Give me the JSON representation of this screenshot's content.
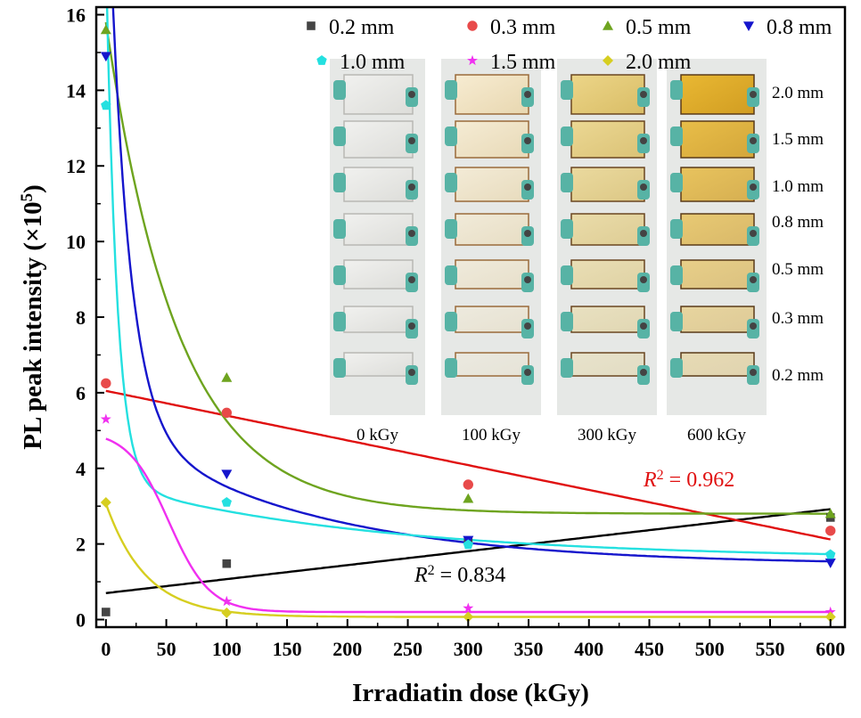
{
  "chart_data": {
    "type": "scatter",
    "title": "",
    "xlabel": "Irradiatin dose (kGy)",
    "ylabel_main": "PL peak intensity (×10",
    "ylabel_exp": "5",
    "ylabel_close": ")",
    "xlim": [
      -8,
      612
    ],
    "ylim": [
      -0.2,
      16.2
    ],
    "xticks": [
      0,
      50,
      100,
      150,
      200,
      250,
      300,
      350,
      400,
      450,
      500,
      550,
      600
    ],
    "yticks": [
      0,
      2,
      4,
      6,
      8,
      10,
      12,
      14,
      16
    ],
    "grid": false,
    "legend_position": "top-right",
    "series": [
      {
        "name": "0.2 mm",
        "marker": "square",
        "color": "#444444",
        "x": [
          0,
          100,
          300,
          600
        ],
        "y": [
          0.2,
          1.48,
          2.08,
          2.7
        ]
      },
      {
        "name": "0.3 mm",
        "marker": "circle",
        "color": "#e84a4a",
        "x": [
          0,
          100,
          300,
          600
        ],
        "y": [
          6.25,
          5.47,
          3.57,
          2.35
        ]
      },
      {
        "name": "0.5 mm",
        "marker": "triangle-up",
        "color": "#6ea41f",
        "x": [
          0,
          100,
          300,
          600
        ],
        "y": [
          15.6,
          6.4,
          3.2,
          2.8
        ]
      },
      {
        "name": "0.8 mm",
        "marker": "triangle-down",
        "color": "#1515cc",
        "x": [
          0,
          100,
          300,
          600
        ],
        "y": [
          14.9,
          3.85,
          2.1,
          1.5
        ]
      },
      {
        "name": "1.0 mm",
        "marker": "pentagon",
        "color": "#24e0e0",
        "x": [
          0,
          100,
          300,
          600
        ],
        "y": [
          13.6,
          3.1,
          1.98,
          1.72
        ]
      },
      {
        "name": "1.5 mm",
        "marker": "star",
        "color": "#f030f0",
        "x": [
          0,
          100,
          300,
          600
        ],
        "y": [
          5.3,
          0.48,
          0.3,
          0.2
        ]
      },
      {
        "name": "2.0 mm",
        "marker": "diamond",
        "color": "#d6ce20",
        "x": [
          0,
          100,
          300,
          600
        ],
        "y": [
          3.1,
          0.18,
          0.07,
          0.07
        ]
      }
    ],
    "fits": [
      {
        "series": "0.2 mm",
        "kind": "linear",
        "color": "#000000",
        "y0": 0.7,
        "slope": 0.0037
      },
      {
        "series": "0.3 mm",
        "kind": "linear",
        "color": "#e01010",
        "y0": 6.05,
        "slope": -0.00655
      },
      {
        "series": "0.5 mm",
        "kind": "exp",
        "color": "#6ea41f",
        "a": 2.8,
        "b": 13.0,
        "tau": 60
      },
      {
        "series": "0.8 mm",
        "kind": "exp2",
        "color": "#1515cc",
        "a": 1.45,
        "b1": 16.0,
        "t1": 16,
        "b2": 3.8,
        "t2": 160
      },
      {
        "series": "1.0 mm",
        "kind": "exp2",
        "color": "#24e0e0",
        "a": 1.6,
        "b1": 14.0,
        "t1": 9,
        "b2": 2.0,
        "t2": 220
      },
      {
        "series": "1.5 mm",
        "kind": "logistic",
        "color": "#f030f0",
        "a": 0.2,
        "b": 4.8,
        "x0": 52,
        "w": 17
      },
      {
        "series": "2.0 mm",
        "kind": "exp",
        "color": "#d6ce20",
        "a": 0.07,
        "b": 3.0,
        "tau": 33
      }
    ],
    "annotations": [
      {
        "id": "r2_red",
        "prefix": "R",
        "sup": "2",
        "value": " = 0.962",
        "color": "#e01010"
      },
      {
        "id": "r2_black",
        "prefix": "R",
        "sup": "2",
        "value": " = 0.834",
        "color": "#000000"
      }
    ],
    "inset": {
      "dose_labels": [
        "0 kGy",
        "100 kGy",
        "300 kGy",
        "600 kGy"
      ],
      "thickness_labels": [
        "2.0 mm",
        "1.5 mm",
        "1.0 mm",
        "0.8 mm",
        "0.5 mm",
        "0.3 mm",
        "0.2 mm"
      ]
    }
  }
}
